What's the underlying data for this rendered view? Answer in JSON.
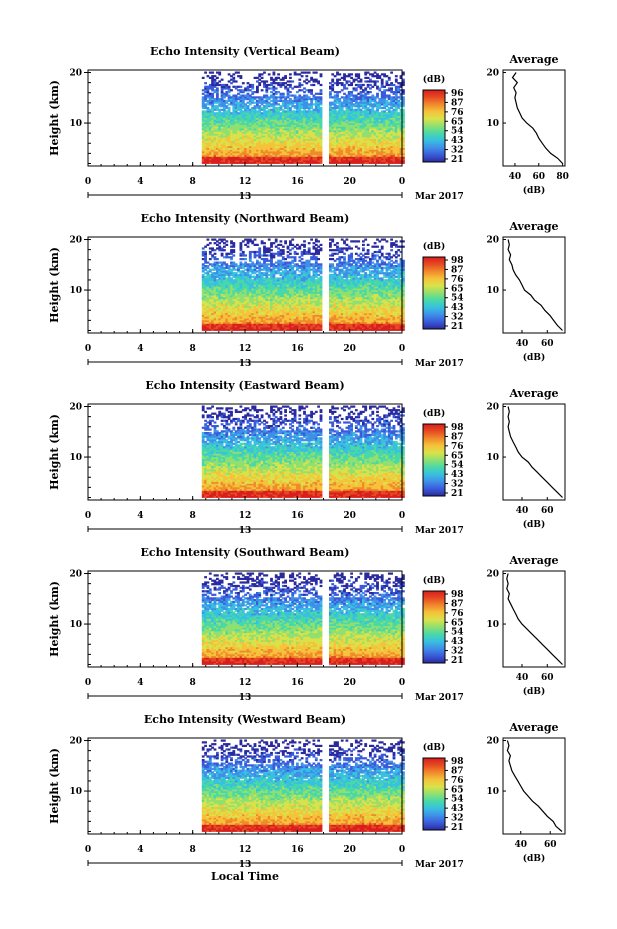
{
  "figure": {
    "xlabel": "Local Time",
    "colors": {
      "scale": [
        "#2a2a9e",
        "#3a5bd9",
        "#3f8fe8",
        "#38c0e0",
        "#49d8a8",
        "#8fe070",
        "#d9e24a",
        "#f5c23a",
        "#f08a2c",
        "#e64a22",
        "#d81e1e"
      ]
    }
  },
  "chart_data": [
    {
      "type": "heatmap",
      "title": "Echo Intensity (Vertical Beam)",
      "ylabel": "Height (km)",
      "x_ticks": [
        "0",
        "4",
        "8",
        "12",
        "16",
        "20",
        "0"
      ],
      "ylim": [
        1.5,
        20.5
      ],
      "y_ticks": [
        "10",
        "20"
      ],
      "date_label": "13",
      "month_label": "Mar 2017",
      "data_start_hour": 8.7,
      "data_end_hour": 24,
      "gap_hours": [
        17.8,
        18.3
      ],
      "colorbar": {
        "unit": "(dB)",
        "ticks": [
          "96",
          "87",
          "76",
          "65",
          "54",
          "43",
          "32",
          "21"
        ]
      },
      "average": {
        "title": "Average",
        "xlabel": "(dB)",
        "x_ticks": [
          "40",
          "60",
          "80"
        ],
        "xlim": [
          30,
          82
        ],
        "y_ticks": [
          "10",
          "20"
        ],
        "profile": [
          [
            80,
            2
          ],
          [
            76,
            3
          ],
          [
            70,
            4
          ],
          [
            66,
            5
          ],
          [
            63,
            6
          ],
          [
            60,
            7
          ],
          [
            58,
            8
          ],
          [
            55,
            9
          ],
          [
            50,
            10
          ],
          [
            46,
            11
          ],
          [
            44,
            12
          ],
          [
            42,
            13
          ],
          [
            41,
            14
          ],
          [
            40,
            15
          ],
          [
            41,
            16
          ],
          [
            39,
            17
          ],
          [
            42,
            18
          ],
          [
            38,
            19
          ],
          [
            41,
            20
          ]
        ]
      }
    },
    {
      "type": "heatmap",
      "title": "Echo Intensity (Northward Beam)",
      "ylabel": "Height (km)",
      "x_ticks": [
        "0",
        "4",
        "8",
        "12",
        "16",
        "20",
        "0"
      ],
      "ylim": [
        1.5,
        20.5
      ],
      "y_ticks": [
        "10",
        "20"
      ],
      "date_label": "13",
      "month_label": "Mar 2017",
      "data_start_hour": 8.7,
      "data_end_hour": 24,
      "gap_hours": [
        17.8,
        18.3
      ],
      "colorbar": {
        "unit": "(dB)",
        "ticks": [
          "98",
          "87",
          "76",
          "65",
          "54",
          "43",
          "32",
          "21"
        ]
      },
      "average": {
        "title": "Average",
        "xlabel": "(dB)",
        "x_ticks": [
          "40",
          "60"
        ],
        "xlim": [
          25,
          74
        ],
        "y_ticks": [
          "10",
          "20"
        ],
        "profile": [
          [
            72,
            2
          ],
          [
            68,
            3
          ],
          [
            65,
            4
          ],
          [
            62,
            5
          ],
          [
            58,
            6
          ],
          [
            55,
            7
          ],
          [
            50,
            8
          ],
          [
            47,
            9
          ],
          [
            42,
            10
          ],
          [
            40,
            11
          ],
          [
            38,
            12
          ],
          [
            35,
            13
          ],
          [
            33,
            14
          ],
          [
            32,
            15
          ],
          [
            30,
            16
          ],
          [
            31,
            17
          ],
          [
            29,
            18
          ],
          [
            30,
            19
          ],
          [
            29,
            20
          ]
        ]
      }
    },
    {
      "type": "heatmap",
      "title": "Echo Intensity (Eastward Beam)",
      "ylabel": "Height (km)",
      "x_ticks": [
        "0",
        "4",
        "8",
        "12",
        "16",
        "20",
        "0"
      ],
      "ylim": [
        1.5,
        20.5
      ],
      "y_ticks": [
        "10",
        "20"
      ],
      "date_label": "13",
      "month_label": "Mar 2017",
      "data_start_hour": 8.7,
      "data_end_hour": 24,
      "gap_hours": [
        17.8,
        18.3
      ],
      "colorbar": {
        "unit": "(dB)",
        "ticks": [
          "98",
          "87",
          "76",
          "65",
          "54",
          "43",
          "32",
          "21"
        ]
      },
      "average": {
        "title": "Average",
        "xlabel": "(dB)",
        "x_ticks": [
          "40",
          "60"
        ],
        "xlim": [
          25,
          74
        ],
        "y_ticks": [
          "10",
          "20"
        ],
        "profile": [
          [
            72,
            2
          ],
          [
            68,
            3
          ],
          [
            64,
            4
          ],
          [
            60,
            5
          ],
          [
            56,
            6
          ],
          [
            52,
            7
          ],
          [
            48,
            8
          ],
          [
            45,
            9
          ],
          [
            40,
            10
          ],
          [
            37,
            11
          ],
          [
            35,
            12
          ],
          [
            33,
            13
          ],
          [
            31,
            14
          ],
          [
            30,
            15
          ],
          [
            29,
            16
          ],
          [
            30,
            17
          ],
          [
            29,
            18
          ],
          [
            30,
            19
          ],
          [
            29,
            20
          ]
        ]
      }
    },
    {
      "type": "heatmap",
      "title": "Echo Intensity (Southward Beam)",
      "ylabel": "Height (km)",
      "x_ticks": [
        "0",
        "4",
        "8",
        "12",
        "16",
        "20",
        "0"
      ],
      "ylim": [
        1.5,
        20.5
      ],
      "y_ticks": [
        "10",
        "20"
      ],
      "date_label": "13",
      "month_label": "Mar 2017",
      "data_start_hour": 8.7,
      "data_end_hour": 24,
      "gap_hours": [
        17.8,
        18.3
      ],
      "colorbar": {
        "unit": "(dB)",
        "ticks": [
          "98",
          "87",
          "76",
          "65",
          "54",
          "43",
          "32",
          "21"
        ]
      },
      "average": {
        "title": "Average",
        "xlabel": "(dB)",
        "x_ticks": [
          "40",
          "60"
        ],
        "xlim": [
          25,
          74
        ],
        "y_ticks": [
          "10",
          "20"
        ],
        "profile": [
          [
            72,
            2
          ],
          [
            68,
            3
          ],
          [
            64,
            4
          ],
          [
            60,
            5
          ],
          [
            56,
            6
          ],
          [
            52,
            7
          ],
          [
            48,
            8
          ],
          [
            44,
            9
          ],
          [
            40,
            10
          ],
          [
            37,
            11
          ],
          [
            35,
            12
          ],
          [
            33,
            13
          ],
          [
            31,
            14
          ],
          [
            29,
            15
          ],
          [
            30,
            16
          ],
          [
            28,
            17
          ],
          [
            29,
            18
          ],
          [
            28,
            19
          ],
          [
            29,
            20
          ]
        ]
      }
    },
    {
      "type": "heatmap",
      "title": "Echo Intensity (Westward Beam)",
      "ylabel": "Height (km)",
      "x_ticks": [
        "0",
        "4",
        "8",
        "12",
        "16",
        "20",
        "0"
      ],
      "ylim": [
        1.5,
        20.5
      ],
      "y_ticks": [
        "10",
        "20"
      ],
      "date_label": "13",
      "month_label": "Mar 2017",
      "data_start_hour": 8.7,
      "data_end_hour": 24,
      "gap_hours": [
        17.8,
        18.3
      ],
      "colorbar": {
        "unit": "(dB)",
        "ticks": [
          "98",
          "87",
          "76",
          "65",
          "54",
          "43",
          "32",
          "21"
        ]
      },
      "average": {
        "title": "Average",
        "xlabel": "(dB)",
        "x_ticks": [
          "40",
          "60"
        ],
        "xlim": [
          28,
          70
        ],
        "y_ticks": [
          "10",
          "20"
        ],
        "profile": [
          [
            68,
            2
          ],
          [
            64,
            3
          ],
          [
            62,
            4
          ],
          [
            58,
            5
          ],
          [
            55,
            6
          ],
          [
            52,
            7
          ],
          [
            48,
            8
          ],
          [
            45,
            9
          ],
          [
            42,
            10
          ],
          [
            40,
            11
          ],
          [
            38,
            12
          ],
          [
            36,
            13
          ],
          [
            34,
            14
          ],
          [
            33,
            15
          ],
          [
            32,
            16
          ],
          [
            33,
            17
          ],
          [
            31,
            18
          ],
          [
            32,
            19
          ],
          [
            31,
            20
          ]
        ]
      }
    }
  ]
}
